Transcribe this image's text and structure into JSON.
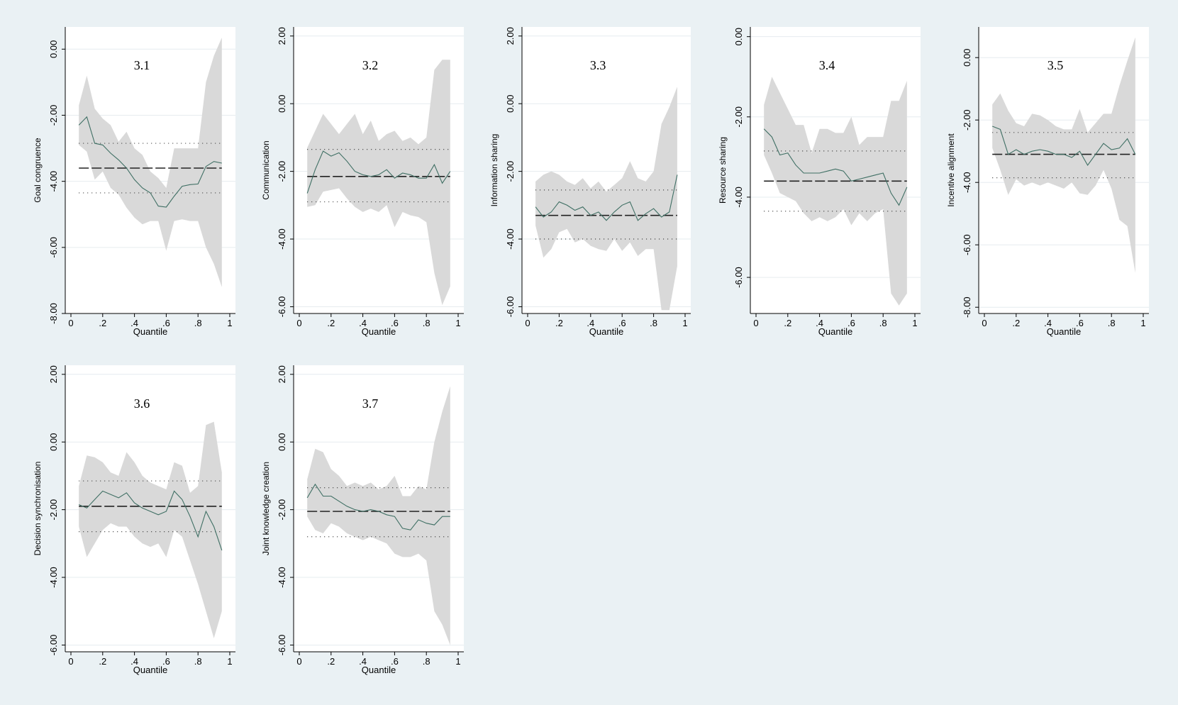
{
  "chart_data": [
    {
      "type": "line",
      "title": "3.1",
      "xlabel": "Quantile",
      "ylabel": "Goal congruence",
      "xlim": [
        0,
        1
      ],
      "ylim": [
        -8,
        0.5
      ],
      "xticks": [
        0,
        0.2,
        0.4,
        0.6,
        0.8,
        1
      ],
      "xtick_labels": [
        "0",
        ".2",
        ".4",
        ".6",
        ".8",
        "1"
      ],
      "yticks": [
        0,
        -2,
        -4,
        -6,
        -8
      ],
      "ytick_labels": [
        "0.00",
        "-2.00",
        "-4.00",
        "-6.00",
        "-8.00"
      ],
      "grid": true,
      "series": [
        {
          "role": "estimate",
          "x": [
            0.05,
            0.1,
            0.15,
            0.2,
            0.25,
            0.3,
            0.35,
            0.4,
            0.45,
            0.5,
            0.55,
            0.6,
            0.65,
            0.7,
            0.75,
            0.8,
            0.85,
            0.9,
            0.95
          ],
          "values": [
            -2.3,
            -2.05,
            -2.85,
            -2.9,
            -3.15,
            -3.35,
            -3.6,
            -3.95,
            -4.2,
            -4.35,
            -4.75,
            -4.78,
            -4.45,
            -4.15,
            -4.1,
            -4.08,
            -3.55,
            -3.4,
            -3.45
          ]
        },
        {
          "role": "ci_upper",
          "values": [
            -1.7,
            -0.8,
            -1.8,
            -2.1,
            -2.3,
            -2.8,
            -2.5,
            -3.0,
            -3.2,
            -3.7,
            -3.9,
            -4.2,
            -3.0,
            -3.0,
            -3.0,
            -3.0,
            -1.0,
            -0.2,
            0.35
          ]
        },
        {
          "role": "ci_lower",
          "values": [
            -2.9,
            -3.1,
            -3.95,
            -3.7,
            -4.2,
            -4.4,
            -4.8,
            -5.1,
            -5.3,
            -5.2,
            -5.2,
            -6.1,
            -5.2,
            -5.15,
            -5.2,
            -5.2,
            -6.0,
            -6.5,
            -7.2
          ]
        }
      ],
      "ols_estimate": -3.6,
      "ols_ci": [
        -2.85,
        -4.35
      ]
    },
    {
      "type": "line",
      "title": "3.2",
      "xlabel": "Quantile",
      "ylabel": "Communication",
      "xlim": [
        0,
        1
      ],
      "ylim": [
        -6.2,
        2.1
      ],
      "xticks": [
        0,
        0.2,
        0.4,
        0.6,
        0.8,
        1
      ],
      "xtick_labels": [
        "0",
        ".2",
        ".4",
        ".6",
        ".8",
        "1"
      ],
      "yticks": [
        2,
        0,
        -2,
        -4,
        -6
      ],
      "ytick_labels": [
        "2.00",
        "0.00",
        "-2.00",
        "-4.00",
        "-6.00"
      ],
      "grid": true,
      "series": [
        {
          "role": "estimate",
          "x": [
            0.05,
            0.1,
            0.15,
            0.2,
            0.25,
            0.3,
            0.35,
            0.4,
            0.45,
            0.5,
            0.55,
            0.6,
            0.65,
            0.7,
            0.75,
            0.8,
            0.85,
            0.9,
            0.95
          ],
          "values": [
            -2.65,
            -1.95,
            -1.4,
            -1.55,
            -1.45,
            -1.7,
            -2.0,
            -2.1,
            -2.15,
            -2.1,
            -1.95,
            -2.2,
            -2.05,
            -2.1,
            -2.2,
            -2.2,
            -1.8,
            -2.35,
            -2.0
          ]
        },
        {
          "role": "ci_upper",
          "values": [
            -1.3,
            -0.8,
            -0.3,
            -0.6,
            -0.9,
            -0.6,
            -0.3,
            -0.9,
            -0.5,
            -1.1,
            -0.9,
            -0.8,
            -1.1,
            -1.0,
            -1.2,
            -1.0,
            1.0,
            1.3,
            1.3
          ]
        },
        {
          "role": "ci_lower",
          "values": [
            -3.05,
            -3.0,
            -2.6,
            -2.55,
            -2.5,
            -2.8,
            -3.05,
            -3.2,
            -3.1,
            -3.2,
            -3.0,
            -3.65,
            -3.2,
            -3.3,
            -3.35,
            -3.5,
            -5.0,
            -5.95,
            -5.4
          ]
        }
      ],
      "ols_estimate": -2.15,
      "ols_ci": [
        -1.35,
        -2.9
      ]
    },
    {
      "type": "line",
      "title": "3.3",
      "xlabel": "Quantile",
      "ylabel": "Information sharing",
      "xlim": [
        0,
        1
      ],
      "ylim": [
        -6.2,
        2.1
      ],
      "xticks": [
        0,
        0.2,
        0.4,
        0.6,
        0.8,
        1
      ],
      "xtick_labels": [
        "0",
        ".2",
        ".4",
        ".6",
        ".8",
        "1"
      ],
      "yticks": [
        2,
        0,
        -2,
        -4,
        -6
      ],
      "ytick_labels": [
        "2.00",
        "0.00",
        "-2.00",
        "-4.00",
        "-6.00"
      ],
      "grid": true,
      "series": [
        {
          "role": "estimate",
          "x": [
            0.05,
            0.1,
            0.15,
            0.2,
            0.25,
            0.3,
            0.35,
            0.4,
            0.45,
            0.5,
            0.55,
            0.6,
            0.65,
            0.7,
            0.75,
            0.8,
            0.85,
            0.9,
            0.95
          ],
          "values": [
            -3.05,
            -3.35,
            -3.2,
            -2.9,
            -3.0,
            -3.15,
            -3.05,
            -3.3,
            -3.2,
            -3.45,
            -3.2,
            -3.0,
            -2.9,
            -3.45,
            -3.25,
            -3.1,
            -3.35,
            -3.2,
            -2.1
          ]
        },
        {
          "role": "ci_upper",
          "values": [
            -2.3,
            -2.1,
            -2.0,
            -2.1,
            -2.3,
            -2.4,
            -2.2,
            -2.5,
            -2.3,
            -2.6,
            -2.4,
            -2.2,
            -1.7,
            -2.2,
            -2.3,
            -2.0,
            -0.6,
            -0.1,
            0.5
          ]
        },
        {
          "role": "ci_lower",
          "values": [
            -3.6,
            -4.55,
            -4.3,
            -3.8,
            -3.7,
            -4.1,
            -4.0,
            -4.2,
            -4.3,
            -4.35,
            -4.0,
            -4.35,
            -4.1,
            -4.5,
            -4.3,
            -4.3,
            -6.1,
            -6.1,
            -4.8
          ]
        }
      ],
      "ols_estimate": -3.3,
      "ols_ci": [
        -2.55,
        -4.0
      ]
    },
    {
      "type": "line",
      "title": "3.4",
      "xlabel": "Quantile",
      "ylabel": "Resource sharing",
      "xlim": [
        0,
        1
      ],
      "ylim": [
        -6.9,
        0.1
      ],
      "xticks": [
        0,
        0.2,
        0.4,
        0.6,
        0.8,
        1
      ],
      "xtick_labels": [
        "0",
        ".2",
        ".4",
        ".6",
        ".8",
        "1"
      ],
      "yticks": [
        0,
        -2,
        -4,
        -6
      ],
      "ytick_labels": [
        "0.00",
        "-2.00",
        "-4.00",
        "-6.00"
      ],
      "grid": true,
      "series": [
        {
          "role": "estimate",
          "x": [
            0.05,
            0.1,
            0.15,
            0.2,
            0.25,
            0.3,
            0.35,
            0.4,
            0.45,
            0.5,
            0.55,
            0.6,
            0.65,
            0.7,
            0.75,
            0.8,
            0.85,
            0.9,
            0.95
          ],
          "values": [
            -2.3,
            -2.5,
            -2.95,
            -2.9,
            -3.2,
            -3.4,
            -3.4,
            -3.4,
            -3.35,
            -3.3,
            -3.35,
            -3.6,
            -3.55,
            -3.5,
            -3.45,
            -3.4,
            -3.9,
            -4.2,
            -3.75
          ]
        },
        {
          "role": "ci_upper",
          "values": [
            -1.7,
            -1.0,
            -1.4,
            -1.8,
            -2.2,
            -2.2,
            -2.9,
            -2.3,
            -2.3,
            -2.4,
            -2.4,
            -2.0,
            -2.7,
            -2.5,
            -2.5,
            -2.5,
            -1.6,
            -1.6,
            -1.1
          ]
        },
        {
          "role": "ci_lower",
          "values": [
            -2.95,
            -3.4,
            -3.9,
            -4.0,
            -4.1,
            -4.4,
            -4.6,
            -4.5,
            -4.6,
            -4.5,
            -4.3,
            -4.7,
            -4.4,
            -4.6,
            -4.4,
            -4.3,
            -6.4,
            -6.7,
            -6.4
          ]
        }
      ],
      "ols_estimate": -3.6,
      "ols_ci": [
        -2.85,
        -4.35
      ]
    },
    {
      "type": "line",
      "title": "3.5",
      "xlabel": "Quantile",
      "ylabel": "Incentive alignment",
      "xlim": [
        0,
        1
      ],
      "ylim": [
        -8.2,
        0.8
      ],
      "xticks": [
        0,
        0.2,
        0.4,
        0.6,
        0.8,
        1
      ],
      "xtick_labels": [
        "0",
        ".2",
        ".4",
        ".6",
        ".8",
        "1"
      ],
      "yticks": [
        0,
        -2,
        -4,
        -6,
        -8
      ],
      "ytick_labels": [
        "0.00",
        "-2.00",
        "-4.00",
        "-6.00",
        "-8.00"
      ],
      "grid": true,
      "series": [
        {
          "role": "estimate",
          "x": [
            0.05,
            0.1,
            0.15,
            0.2,
            0.25,
            0.3,
            0.35,
            0.4,
            0.45,
            0.5,
            0.55,
            0.6,
            0.65,
            0.7,
            0.75,
            0.8,
            0.85,
            0.9,
            0.95
          ],
          "values": [
            -2.2,
            -2.3,
            -3.1,
            -2.95,
            -3.1,
            -3.0,
            -2.95,
            -3.0,
            -3.1,
            -3.1,
            -3.2,
            -3.0,
            -3.45,
            -3.1,
            -2.75,
            -2.95,
            -2.9,
            -2.6,
            -3.1
          ]
        },
        {
          "role": "ci_upper",
          "values": [
            -1.5,
            -1.15,
            -1.7,
            -2.1,
            -2.2,
            -1.8,
            -1.85,
            -2.0,
            -2.2,
            -2.3,
            -2.3,
            -1.65,
            -2.4,
            -2.1,
            -1.8,
            -1.8,
            -0.9,
            -0.1,
            0.65
          ]
        },
        {
          "role": "ci_lower",
          "values": [
            -2.9,
            -3.6,
            -4.4,
            -3.9,
            -4.1,
            -4.0,
            -4.1,
            -4.0,
            -4.1,
            -4.2,
            -4.0,
            -4.35,
            -4.4,
            -4.1,
            -3.6,
            -4.2,
            -5.2,
            -5.4,
            -6.9
          ]
        }
      ],
      "ols_estimate": -3.1,
      "ols_ci": [
        -2.4,
        -3.85
      ]
    },
    {
      "type": "line",
      "title": "3.6",
      "xlabel": "Quantile",
      "ylabel": "Decision synchronisation",
      "xlim": [
        0,
        1
      ],
      "ylim": [
        -6.2,
        2.1
      ],
      "xticks": [
        0,
        0.2,
        0.4,
        0.6,
        0.8,
        1
      ],
      "xtick_labels": [
        "0",
        ".2",
        ".4",
        ".6",
        ".8",
        "1"
      ],
      "yticks": [
        2,
        0,
        -2,
        -4,
        -6
      ],
      "ytick_labels": [
        "2.00",
        "0.00",
        "-2.00",
        "-4.00",
        "-6.00"
      ],
      "grid": true,
      "series": [
        {
          "role": "estimate",
          "x": [
            0.05,
            0.1,
            0.15,
            0.2,
            0.25,
            0.3,
            0.35,
            0.4,
            0.45,
            0.5,
            0.55,
            0.6,
            0.65,
            0.7,
            0.75,
            0.8,
            0.85,
            0.9,
            0.95
          ],
          "values": [
            -1.85,
            -1.95,
            -1.7,
            -1.45,
            -1.55,
            -1.65,
            -1.5,
            -1.8,
            -1.95,
            -2.05,
            -2.15,
            -2.05,
            -1.45,
            -1.7,
            -2.2,
            -2.8,
            -2.05,
            -2.5,
            -3.2
          ]
        },
        {
          "role": "ci_upper",
          "values": [
            -1.3,
            -0.4,
            -0.45,
            -0.6,
            -0.9,
            -1.0,
            -0.3,
            -0.6,
            -1.0,
            -1.2,
            -1.3,
            -1.4,
            -0.6,
            -0.7,
            -1.5,
            -1.3,
            0.5,
            0.6,
            -0.9
          ]
        },
        {
          "role": "ci_lower",
          "values": [
            -2.5,
            -3.4,
            -3.0,
            -2.6,
            -2.4,
            -2.5,
            -2.5,
            -2.8,
            -3.0,
            -3.1,
            -3.0,
            -3.4,
            -2.6,
            -2.8,
            -3.5,
            -4.2,
            -5.0,
            -5.8,
            -5.0
          ]
        }
      ],
      "ols_estimate": -1.9,
      "ols_ci": [
        -1.15,
        -2.65
      ]
    },
    {
      "type": "line",
      "title": "3.7",
      "xlabel": "Quantile",
      "ylabel": "Joint knowledge creation",
      "xlim": [
        0,
        1
      ],
      "ylim": [
        -6.2,
        2.1
      ],
      "xticks": [
        0,
        0.2,
        0.4,
        0.6,
        0.8,
        1
      ],
      "xtick_labels": [
        "0",
        ".2",
        ".4",
        ".6",
        ".8",
        "1"
      ],
      "yticks": [
        2,
        0,
        -2,
        -4,
        -6
      ],
      "ytick_labels": [
        "2.00",
        "0.00",
        "-2.00",
        "-4.00",
        "-6.00"
      ],
      "grid": true,
      "series": [
        {
          "role": "estimate",
          "x": [
            0.05,
            0.1,
            0.15,
            0.2,
            0.25,
            0.3,
            0.35,
            0.4,
            0.45,
            0.5,
            0.55,
            0.6,
            0.65,
            0.7,
            0.75,
            0.8,
            0.85,
            0.9,
            0.95
          ],
          "values": [
            -1.65,
            -1.25,
            -1.6,
            -1.6,
            -1.75,
            -1.9,
            -2.0,
            -2.05,
            -2.0,
            -2.05,
            -2.15,
            -2.2,
            -2.55,
            -2.6,
            -2.3,
            -2.4,
            -2.45,
            -2.2,
            -2.2
          ]
        },
        {
          "role": "ci_upper",
          "values": [
            -1.1,
            -0.2,
            -0.3,
            -0.8,
            -1.0,
            -1.3,
            -1.2,
            -1.3,
            -1.2,
            -1.4,
            -1.3,
            -1.0,
            -1.6,
            -1.6,
            -1.3,
            -1.4,
            0.0,
            0.9,
            1.65
          ]
        },
        {
          "role": "ci_lower",
          "values": [
            -2.2,
            -2.6,
            -2.7,
            -2.4,
            -2.5,
            -2.7,
            -2.8,
            -2.9,
            -2.8,
            -2.9,
            -3.0,
            -3.3,
            -3.4,
            -3.4,
            -3.3,
            -3.5,
            -5.0,
            -5.4,
            -6.0
          ]
        }
      ],
      "ols_estimate": -2.05,
      "ols_ci": [
        -1.35,
        -2.8
      ]
    }
  ]
}
